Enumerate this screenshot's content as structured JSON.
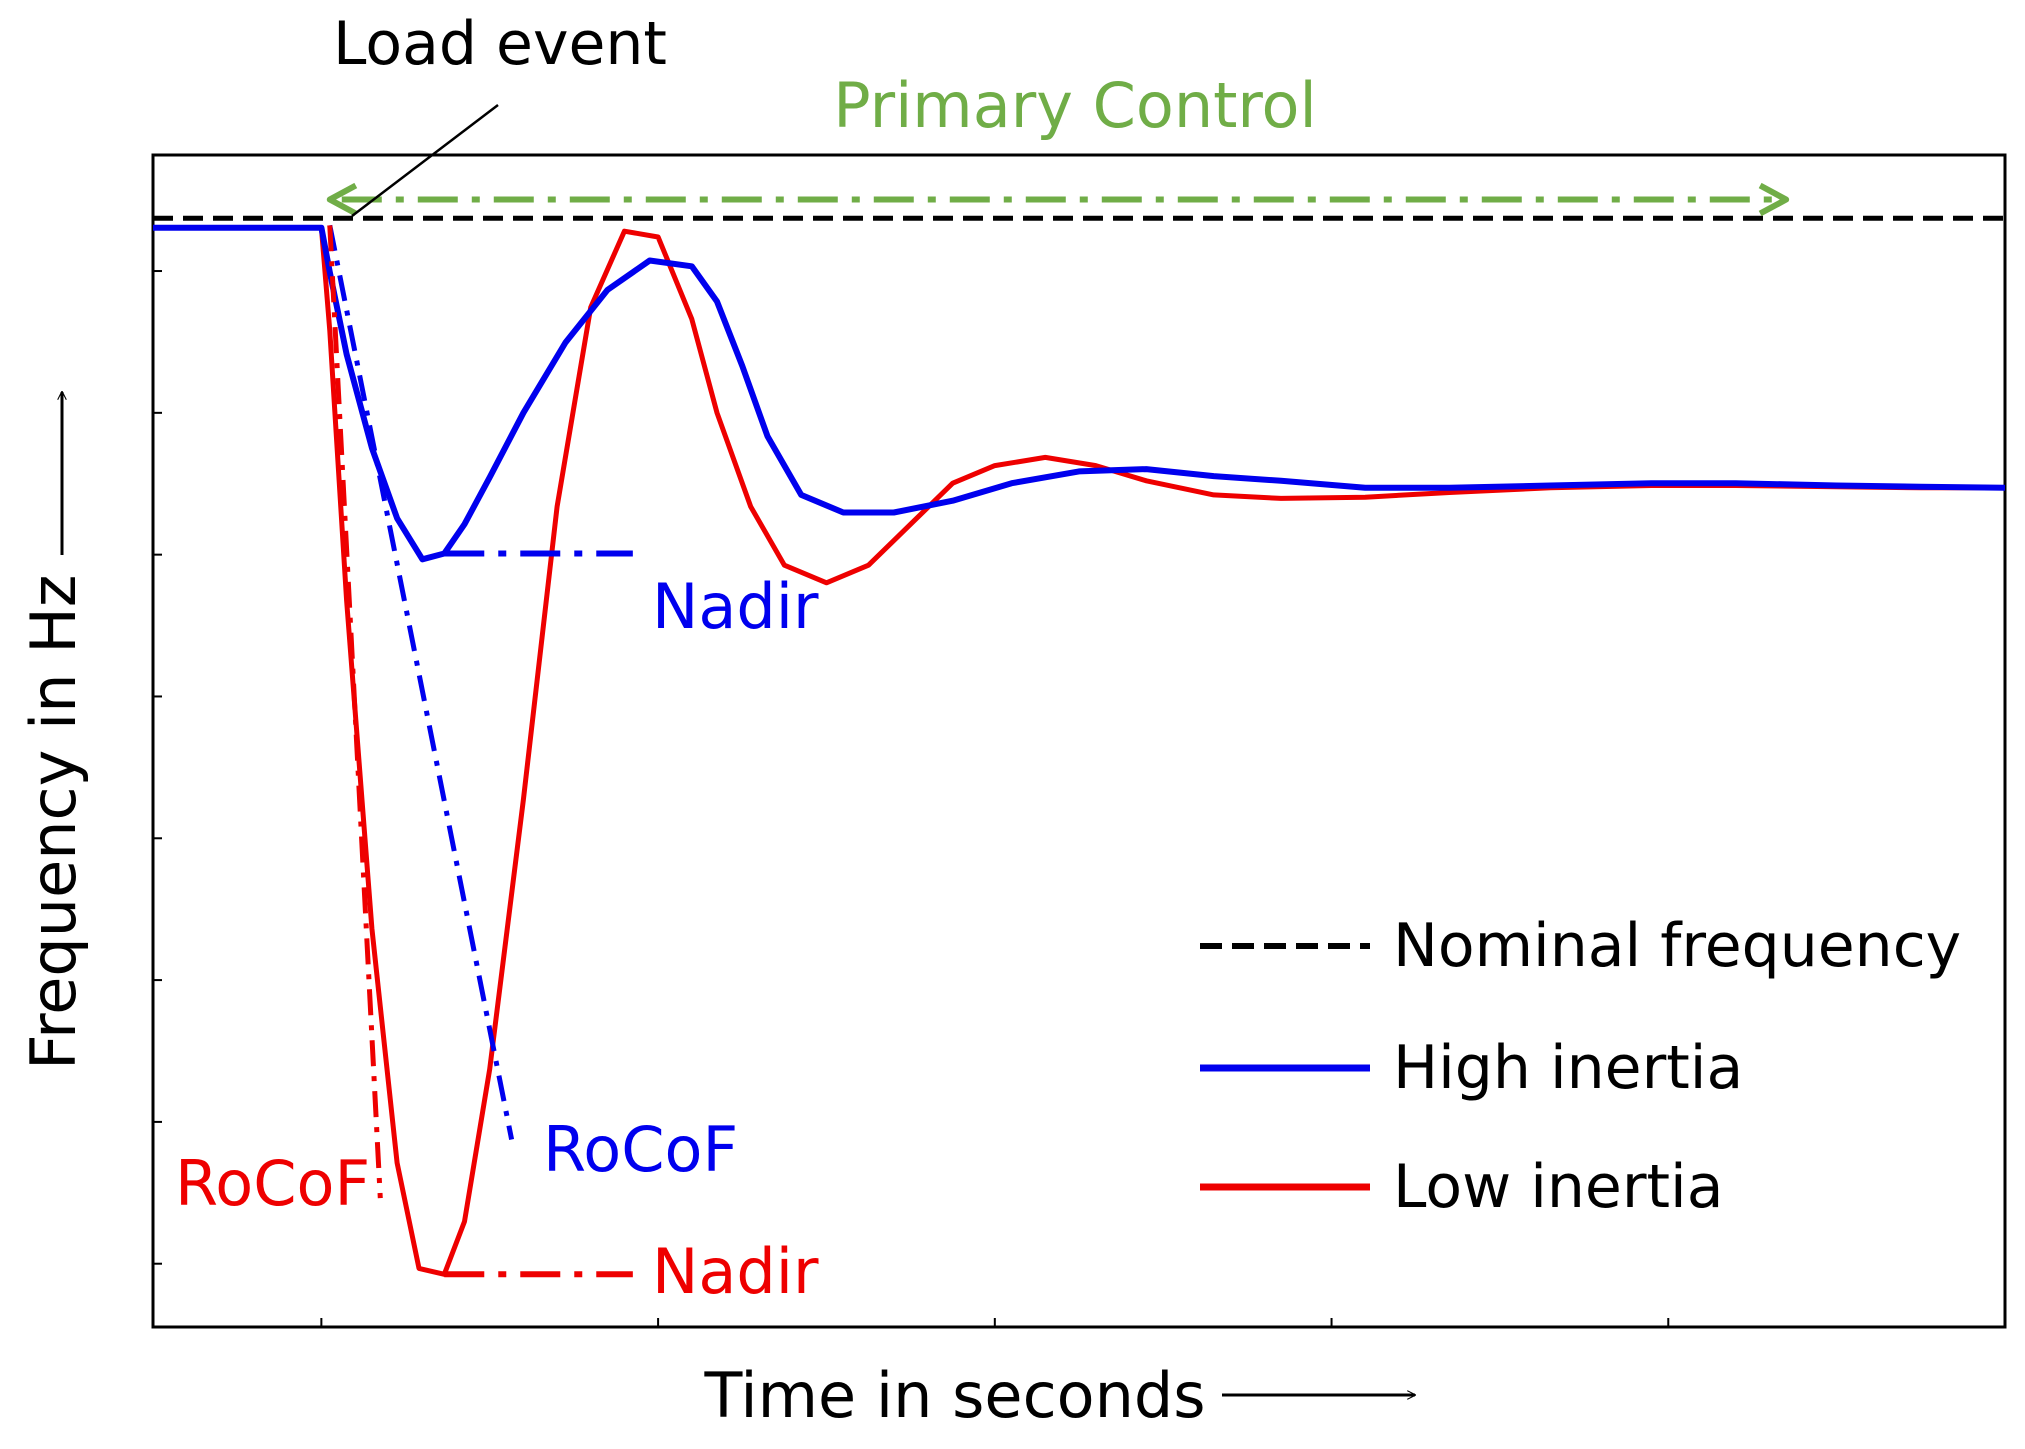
{
  "chart_data": {
    "type": "line",
    "title": "",
    "xlabel": "Time in seconds",
    "ylabel": "Frequency in Hz",
    "xlim": [
      -1,
      10
    ],
    "ylim": [
      0,
      1
    ],
    "grid": false,
    "legend_position": "bottom-right",
    "colors": {
      "nominal": "#000000",
      "high": "#0000ee",
      "low": "#ee0000",
      "primary": "#70ad47",
      "frame": "#000000"
    },
    "series": [
      {
        "name": "Nominal frequency",
        "style": "dashed",
        "color": "#000000",
        "x": [
          -1,
          10
        ],
        "y": [
          0.946,
          0.946
        ]
      },
      {
        "name": "High inertia",
        "style": "solid",
        "color": "#0000ee",
        "x": [
          -1,
          0,
          0.05,
          0.15,
          0.3,
          0.45,
          0.6,
          0.73,
          0.85,
          1.0,
          1.2,
          1.45,
          1.7,
          1.95,
          2.2,
          2.35,
          2.5,
          2.65,
          2.85,
          3.1,
          3.4,
          3.75,
          4.1,
          4.5,
          4.9,
          5.3,
          5.7,
          6.2,
          6.7,
          7.3,
          7.9,
          8.4,
          9.0,
          9.5,
          10
        ],
        "y": [
          0.938,
          0.938,
          0.9,
          0.83,
          0.75,
          0.69,
          0.655,
          0.66,
          0.685,
          0.725,
          0.78,
          0.84,
          0.885,
          0.91,
          0.905,
          0.875,
          0.82,
          0.76,
          0.71,
          0.695,
          0.695,
          0.705,
          0.72,
          0.73,
          0.732,
          0.726,
          0.722,
          0.716,
          0.716,
          0.718,
          0.72,
          0.72,
          0.718,
          0.717,
          0.716
        ]
      },
      {
        "name": "Low inertia",
        "style": "solid",
        "color": "#ee0000",
        "x": [
          -1,
          0,
          0.05,
          0.15,
          0.3,
          0.45,
          0.58,
          0.73,
          0.85,
          1.0,
          1.2,
          1.4,
          1.6,
          1.8,
          2.0,
          2.2,
          2.35,
          2.55,
          2.75,
          3.0,
          3.25,
          3.5,
          3.75,
          4.0,
          4.3,
          4.6,
          4.9,
          5.3,
          5.7,
          6.2,
          6.7,
          7.3,
          7.9,
          8.4,
          9.0,
          9.5,
          10
        ],
        "y": [
          0.938,
          0.938,
          0.85,
          0.62,
          0.34,
          0.14,
          0.05,
          0.045,
          0.09,
          0.22,
          0.45,
          0.7,
          0.87,
          0.935,
          0.93,
          0.86,
          0.78,
          0.7,
          0.65,
          0.635,
          0.65,
          0.685,
          0.72,
          0.735,
          0.742,
          0.735,
          0.722,
          0.71,
          0.707,
          0.708,
          0.712,
          0.716,
          0.718,
          0.718,
          0.717,
          0.716,
          0.716
        ]
      }
    ],
    "annotations": [
      {
        "id": "load-event",
        "text": "Load event",
        "color": "#000000"
      },
      {
        "id": "primary-control",
        "text": "Primary Control",
        "color": "#70ad47",
        "x_start": 0.05,
        "x_end": 8.7,
        "y": 0.962
      },
      {
        "id": "nadir-high",
        "text": "Nadir",
        "color": "#0000ee",
        "x_start": 0.73,
        "x_end": 1.85,
        "y": 0.66
      },
      {
        "id": "nadir-low",
        "text": "Nadir",
        "color": "#ee0000",
        "x_start": 0.73,
        "x_end": 1.85,
        "y": 0.045
      },
      {
        "id": "rocof-high",
        "text": "RoCoF",
        "color": "#0000ee",
        "x_start": 0.05,
        "y_start": 0.94,
        "x_end": 1.13,
        "y_end": 0.16
      },
      {
        "id": "rocof-low",
        "text": "RoCoF",
        "color": "#ee0000",
        "x_start": 0.05,
        "y_start": 0.94,
        "x_end": 0.35,
        "y_end": 0.11
      }
    ]
  }
}
